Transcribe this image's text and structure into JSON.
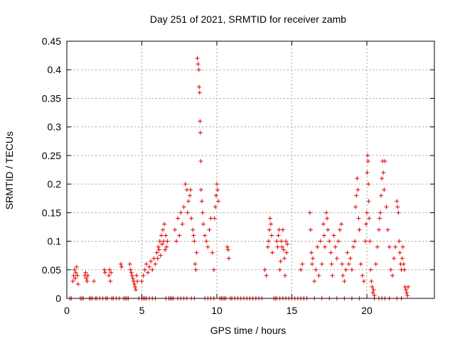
{
  "chart_data": {
    "type": "scatter",
    "title": "Day 251 of 2021, SRMTID for receiver zamb",
    "xlabel": "GPS time / hours",
    "ylabel": "SRMTID / TECUs",
    "xlim": [
      0,
      24.5
    ],
    "ylim": [
      0,
      0.45
    ],
    "xticks": [
      0,
      5,
      10,
      15,
      20
    ],
    "xtick_labels": [
      "0",
      "5",
      "10",
      "15",
      "20"
    ],
    "yticks": [
      0,
      0.05,
      0.1,
      0.15,
      0.2,
      0.25,
      0.3,
      0.35,
      0.4,
      0.45
    ],
    "ytick_labels": [
      "0",
      "0.05",
      "0.1",
      "0.15",
      "0.2",
      "0.25",
      "0.3",
      "0.35",
      "0.4",
      "0.45"
    ],
    "grid": true,
    "marker": "+",
    "color": "#e00000",
    "series": [
      {
        "name": "SRMTID",
        "points": [
          [
            0.2,
            0
          ],
          [
            0.3,
            0
          ],
          [
            0.4,
            0.03
          ],
          [
            0.45,
            0.04
          ],
          [
            0.5,
            0.05
          ],
          [
            0.55,
            0.035
          ],
          [
            0.6,
            0.045
          ],
          [
            0.65,
            0.055
          ],
          [
            0.7,
            0.04
          ],
          [
            0.75,
            0.025
          ],
          [
            0.9,
            0
          ],
          [
            1.0,
            0
          ],
          [
            1.1,
            0
          ],
          [
            1.2,
            0.04
          ],
          [
            1.25,
            0.045
          ],
          [
            1.3,
            0.035
          ],
          [
            1.35,
            0.03
          ],
          [
            1.4,
            0.04
          ],
          [
            1.5,
            0
          ],
          [
            1.6,
            0
          ],
          [
            1.7,
            0
          ],
          [
            1.8,
            0.03
          ],
          [
            1.9,
            0
          ],
          [
            2.0,
            0
          ],
          [
            2.2,
            0
          ],
          [
            2.4,
            0
          ],
          [
            2.5,
            0.05
          ],
          [
            2.55,
            0.045
          ],
          [
            2.6,
            0
          ],
          [
            2.7,
            0
          ],
          [
            2.8,
            0.04
          ],
          [
            2.85,
            0.05
          ],
          [
            2.9,
            0.03
          ],
          [
            2.95,
            0.045
          ],
          [
            3.0,
            0
          ],
          [
            3.1,
            0
          ],
          [
            3.3,
            0
          ],
          [
            3.5,
            0
          ],
          [
            3.6,
            0.06
          ],
          [
            3.65,
            0.055
          ],
          [
            3.8,
            0
          ],
          [
            3.9,
            0
          ],
          [
            4.0,
            0
          ],
          [
            4.1,
            0
          ],
          [
            4.2,
            0.06
          ],
          [
            4.25,
            0.05
          ],
          [
            4.3,
            0.045
          ],
          [
            4.35,
            0.04
          ],
          [
            4.4,
            0.035
          ],
          [
            4.45,
            0.03
          ],
          [
            4.5,
            0.025
          ],
          [
            4.55,
            0.02
          ],
          [
            4.6,
            0.015
          ],
          [
            4.65,
            0.04
          ],
          [
            4.7,
            0.03
          ],
          [
            4.8,
            0
          ],
          [
            5.0,
            0
          ],
          [
            5.1,
            0
          ],
          [
            5.2,
            0
          ],
          [
            5.3,
            0
          ],
          [
            5.0,
            0.03
          ],
          [
            5.1,
            0.04
          ],
          [
            5.2,
            0.05
          ],
          [
            5.3,
            0.06
          ],
          [
            5.4,
            0.045
          ],
          [
            5.5,
            0.055
          ],
          [
            5.6,
            0.065
          ],
          [
            5.7,
            0.05
          ],
          [
            5.8,
            0.07
          ],
          [
            5.9,
            0.06
          ],
          [
            6.0,
            0.08
          ],
          [
            6.05,
            0.07
          ],
          [
            6.1,
            0.09
          ],
          [
            6.15,
            0.085
          ],
          [
            6.2,
            0.1
          ],
          [
            6.25,
            0.075
          ],
          [
            6.3,
            0.11
          ],
          [
            6.35,
            0.095
          ],
          [
            6.4,
            0.12
          ],
          [
            6.45,
            0.1
          ],
          [
            6.5,
            0.13
          ],
          [
            6.55,
            0.085
          ],
          [
            6.6,
            0.11
          ],
          [
            6.65,
            0.09
          ],
          [
            6.7,
            0.1
          ],
          [
            6.8,
            0
          ],
          [
            6.9,
            0
          ],
          [
            7.0,
            0
          ],
          [
            7.1,
            0
          ],
          [
            7.2,
            0.12
          ],
          [
            7.3,
            0.1
          ],
          [
            7.4,
            0.14
          ],
          [
            7.5,
            0.11
          ],
          [
            7.6,
            0.15
          ],
          [
            7.7,
            0.13
          ],
          [
            7.8,
            0.16
          ],
          [
            7.9,
            0.2
          ],
          [
            8.0,
            0.19
          ],
          [
            8.05,
            0.15
          ],
          [
            8.1,
            0.17
          ],
          [
            8.2,
            0.18
          ],
          [
            8.25,
            0.19
          ],
          [
            8.3,
            0.14
          ],
          [
            8.4,
            0.12
          ],
          [
            8.45,
            0.11
          ],
          [
            8.5,
            0.1
          ],
          [
            8.55,
            0.06
          ],
          [
            8.6,
            0.05
          ],
          [
            8.65,
            0.08
          ],
          [
            8.7,
            0.42
          ],
          [
            8.75,
            0.41
          ],
          [
            8.8,
            0.4
          ],
          [
            8.82,
            0.37
          ],
          [
            8.85,
            0.36
          ],
          [
            8.88,
            0.31
          ],
          [
            8.9,
            0.29
          ],
          [
            8.93,
            0.24
          ],
          [
            8.95,
            0.19
          ],
          [
            9.0,
            0.17
          ],
          [
            9.05,
            0.15
          ],
          [
            9.1,
            0.13
          ],
          [
            9.2,
            0.11
          ],
          [
            9.3,
            0.1
          ],
          [
            9.4,
            0.09
          ],
          [
            9.5,
            0.12
          ],
          [
            9.6,
            0.14
          ],
          [
            9.7,
            0.08
          ],
          [
            9.8,
            0.05
          ],
          [
            9.85,
            0.14
          ],
          [
            9.9,
            0.16
          ],
          [
            9.95,
            0.18
          ],
          [
            10.0,
            0.2
          ],
          [
            10.05,
            0.19
          ],
          [
            10.1,
            0.17
          ],
          [
            10.2,
            0
          ],
          [
            10.3,
            0
          ],
          [
            10.5,
            0
          ],
          [
            10.7,
            0.09
          ],
          [
            10.75,
            0.085
          ],
          [
            10.8,
            0.07
          ],
          [
            10.9,
            0
          ],
          [
            11.0,
            0
          ],
          [
            11.2,
            0
          ],
          [
            11.4,
            0
          ],
          [
            11.6,
            0
          ],
          [
            11.8,
            0
          ],
          [
            12.0,
            0
          ],
          [
            12.2,
            0
          ],
          [
            12.4,
            0
          ],
          [
            12.6,
            0
          ],
          [
            12.8,
            0
          ],
          [
            13.0,
            0
          ],
          [
            13.2,
            0.05
          ],
          [
            13.3,
            0.04
          ],
          [
            13.4,
            0.09
          ],
          [
            13.45,
            0.1
          ],
          [
            13.5,
            0.12
          ],
          [
            13.55,
            0.14
          ],
          [
            13.6,
            0.13
          ],
          [
            13.65,
            0.11
          ],
          [
            13.7,
            0.08
          ],
          [
            13.8,
            0
          ],
          [
            13.9,
            0
          ],
          [
            14.0,
            0.1
          ],
          [
            14.05,
            0.09
          ],
          [
            14.1,
            0.11
          ],
          [
            14.15,
            0.12
          ],
          [
            14.2,
            0.05
          ],
          [
            14.25,
            0.065
          ],
          [
            14.3,
            0.1
          ],
          [
            14.35,
            0.09
          ],
          [
            14.4,
            0.12
          ],
          [
            14.45,
            0.085
          ],
          [
            14.5,
            0.07
          ],
          [
            14.55,
            0.04
          ],
          [
            14.6,
            0.1
          ],
          [
            14.65,
            0.08
          ],
          [
            14.7,
            0.095
          ],
          [
            14.8,
            0
          ],
          [
            15.0,
            0
          ],
          [
            15.2,
            0
          ],
          [
            15.4,
            0
          ],
          [
            15.6,
            0.05
          ],
          [
            15.7,
            0.06
          ],
          [
            15.8,
            0
          ],
          [
            16.0,
            0
          ],
          [
            16.2,
            0.15
          ],
          [
            16.25,
            0.12
          ],
          [
            16.3,
            0.08
          ],
          [
            16.35,
            0.06
          ],
          [
            16.4,
            0.07
          ],
          [
            16.5,
            0.03
          ],
          [
            16.6,
            0.05
          ],
          [
            16.7,
            0.09
          ],
          [
            16.8,
            0.04
          ],
          [
            16.9,
            0.1
          ],
          [
            17.0,
            0.06
          ],
          [
            17.1,
            0.13
          ],
          [
            17.15,
            0.11
          ],
          [
            17.2,
            0.09
          ],
          [
            17.3,
            0.15
          ],
          [
            17.35,
            0.14
          ],
          [
            17.4,
            0.12
          ],
          [
            17.5,
            0.1
          ],
          [
            17.6,
            0.08
          ],
          [
            17.65,
            0.06
          ],
          [
            17.7,
            0.04
          ],
          [
            17.8,
            0.11
          ],
          [
            17.9,
            0.09
          ],
          [
            18.0,
            0.07
          ],
          [
            18.1,
            0.1
          ],
          [
            18.2,
            0.12
          ],
          [
            18.3,
            0.13
          ],
          [
            18.35,
            0.06
          ],
          [
            18.4,
            0.04
          ],
          [
            18.5,
            0.03
          ],
          [
            18.6,
            0.05
          ],
          [
            18.7,
            0.08
          ],
          [
            18.8,
            0.06
          ],
          [
            18.9,
            0.07
          ],
          [
            19.0,
            0.05
          ],
          [
            19.1,
            0.09
          ],
          [
            19.2,
            0.1
          ],
          [
            19.25,
            0.16
          ],
          [
            19.3,
            0.18
          ],
          [
            19.35,
            0.21
          ],
          [
            19.4,
            0.19
          ],
          [
            19.45,
            0.14
          ],
          [
            19.5,
            0.12
          ],
          [
            19.6,
            0.06
          ],
          [
            19.7,
            0.04
          ],
          [
            19.8,
            0.03
          ],
          [
            19.9,
            0.1
          ],
          [
            19.95,
            0.13
          ],
          [
            20.0,
            0.15
          ],
          [
            20.02,
            0.22
          ],
          [
            20.05,
            0.25
          ],
          [
            20.08,
            0.24
          ],
          [
            20.1,
            0.2
          ],
          [
            20.12,
            0.17
          ],
          [
            20.15,
            0.14
          ],
          [
            20.2,
            0.1
          ],
          [
            20.25,
            0.05
          ],
          [
            20.3,
            0.03
          ],
          [
            20.35,
            0.02
          ],
          [
            20.4,
            0.01
          ],
          [
            20.45,
            0.015
          ],
          [
            20.5,
            0.005
          ],
          [
            20.6,
            0.06
          ],
          [
            20.7,
            0.09
          ],
          [
            20.8,
            0.12
          ],
          [
            20.85,
            0.14
          ],
          [
            20.9,
            0.15
          ],
          [
            20.95,
            0.18
          ],
          [
            21.0,
            0.21
          ],
          [
            21.05,
            0.24
          ],
          [
            21.1,
            0.22
          ],
          [
            21.15,
            0.19
          ],
          [
            21.2,
            0.24
          ],
          [
            21.3,
            0.16
          ],
          [
            21.4,
            0.12
          ],
          [
            21.5,
            0.09
          ],
          [
            21.6,
            0.05
          ],
          [
            21.7,
            0.04
          ],
          [
            21.8,
            0.07
          ],
          [
            21.9,
            0.09
          ],
          [
            22.0,
            0.17
          ],
          [
            22.05,
            0.16
          ],
          [
            22.1,
            0.15
          ],
          [
            22.15,
            0.1
          ],
          [
            22.2,
            0.08
          ],
          [
            22.25,
            0.06
          ],
          [
            22.3,
            0.05
          ],
          [
            22.35,
            0.07
          ],
          [
            22.4,
            0.09
          ],
          [
            22.45,
            0.06
          ],
          [
            22.5,
            0.05
          ],
          [
            22.55,
            0.02
          ],
          [
            22.6,
            0.015
          ],
          [
            22.65,
            0.01
          ],
          [
            22.7,
            0.005
          ],
          [
            22.75,
            0.02
          ],
          [
            5.5,
            0
          ],
          [
            5.7,
            0
          ],
          [
            5.9,
            0
          ],
          [
            6.6,
            0
          ],
          [
            7.4,
            0
          ],
          [
            7.6,
            0
          ],
          [
            7.8,
            0
          ],
          [
            8.0,
            0
          ],
          [
            8.3,
            0
          ],
          [
            8.5,
            0
          ],
          [
            9.2,
            0
          ],
          [
            9.4,
            0
          ],
          [
            9.6,
            0
          ],
          [
            9.8,
            0
          ],
          [
            10.4,
            0
          ],
          [
            10.6,
            0
          ],
          [
            14.0,
            0
          ],
          [
            14.2,
            0
          ],
          [
            14.4,
            0
          ],
          [
            14.6,
            0
          ],
          [
            15.6,
            0
          ],
          [
            15.8,
            0
          ],
          [
            16.5,
            0
          ],
          [
            17.0,
            0
          ],
          [
            17.5,
            0
          ],
          [
            18.0,
            0
          ],
          [
            18.5,
            0
          ],
          [
            19.0,
            0
          ],
          [
            19.5,
            0
          ],
          [
            20.5,
            0
          ],
          [
            20.8,
            0
          ],
          [
            21.0,
            0
          ],
          [
            21.2,
            0
          ],
          [
            21.5,
            0
          ],
          [
            22.0,
            0
          ],
          [
            22.3,
            0
          ]
        ]
      }
    ]
  }
}
